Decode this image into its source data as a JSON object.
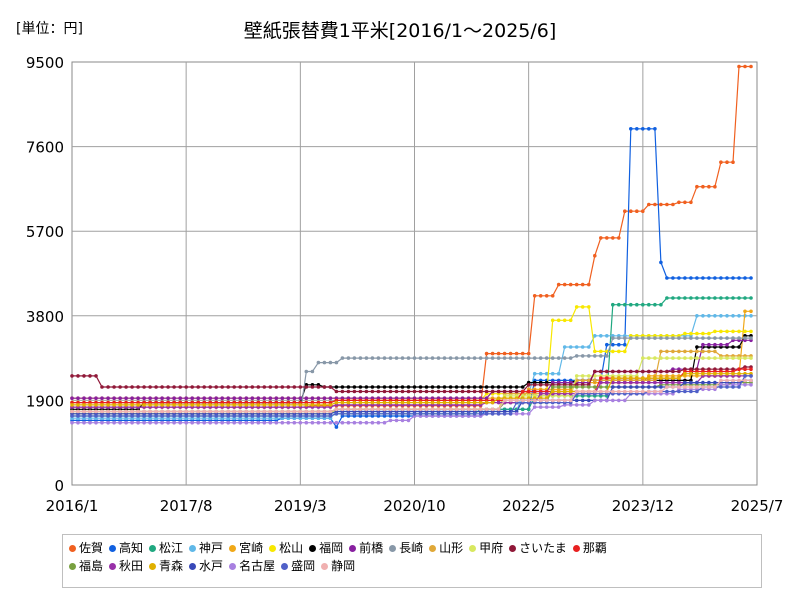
{
  "unit_label": "[単位：円]",
  "chart_data": {
    "type": "line",
    "title": "壁紙張替費1平米[2016/1～2025/6]",
    "xlabel": "",
    "ylabel": "",
    "ylim": [
      0,
      9500
    ],
    "xlim": [
      2016.0,
      2025.5
    ],
    "yticks": [
      0,
      1900,
      3800,
      5700,
      7600,
      9500
    ],
    "ytick_labels": [
      "0",
      "1900",
      "3800",
      "5700",
      "7600",
      "9500"
    ],
    "xticks": [
      2016.0,
      2017.583,
      2019.167,
      2020.75,
      2022.333,
      2023.917,
      2025.5
    ],
    "xtick_labels": [
      "2016/1",
      "2017/8",
      "2019/3",
      "2020/10",
      "2022/5",
      "2023/12",
      "2025/7"
    ],
    "grid": true,
    "series": [
      {
        "name": "佐賀",
        "color": "#f06020",
        "steps": [
          [
            2016.0,
            1750
          ],
          [
            2019.3,
            1780
          ],
          [
            2021.7,
            2950
          ],
          [
            2022.35,
            4250
          ],
          [
            2022.75,
            4500
          ],
          [
            2023.2,
            5150
          ],
          [
            2023.3,
            5550
          ],
          [
            2023.6,
            6150
          ],
          [
            2023.95,
            6300
          ],
          [
            2024.4,
            6350
          ],
          [
            2024.6,
            6700
          ],
          [
            2025.0,
            7250
          ],
          [
            2025.2,
            9400
          ]
        ]
      },
      {
        "name": "高知",
        "color": "#1060e0",
        "steps": [
          [
            2016.0,
            1450
          ],
          [
            2018.9,
            1500
          ],
          [
            2019.4,
            1500
          ],
          [
            2019.6,
            1300
          ],
          [
            2019.7,
            1550
          ],
          [
            2021.7,
            1700
          ],
          [
            2022.4,
            2350
          ],
          [
            2023.4,
            3150
          ],
          [
            2023.7,
            8000
          ],
          [
            2024.1,
            5000
          ],
          [
            2024.2,
            4650
          ]
        ]
      },
      {
        "name": "松江",
        "color": "#20a880",
        "steps": [
          [
            2016.0,
            1550
          ],
          [
            2019.6,
            1600
          ],
          [
            2021.6,
            1700
          ],
          [
            2022.4,
            2000
          ],
          [
            2023.5,
            4050
          ],
          [
            2024.05,
            4050
          ],
          [
            2024.2,
            4200
          ]
        ]
      },
      {
        "name": "神戸",
        "color": "#60b8e8",
        "steps": [
          [
            2016.0,
            1500
          ],
          [
            2019.6,
            1650
          ],
          [
            2022.2,
            2050
          ],
          [
            2022.4,
            2500
          ],
          [
            2022.8,
            3100
          ],
          [
            2023.2,
            3350
          ],
          [
            2024.1,
            3350
          ],
          [
            2024.6,
            3800
          ]
        ]
      },
      {
        "name": "宮崎",
        "color": "#f0a818",
        "steps": [
          [
            2016.0,
            1950
          ],
          [
            2019.6,
            1950
          ],
          [
            2022.3,
            2150
          ],
          [
            2023.0,
            2300
          ],
          [
            2024.0,
            2450
          ],
          [
            2025.3,
            3900
          ]
        ]
      },
      {
        "name": "松山",
        "color": "#f8e800",
        "steps": [
          [
            2016.0,
            1850
          ],
          [
            2019.6,
            1900
          ],
          [
            2021.7,
            2050
          ],
          [
            2022.65,
            3700
          ],
          [
            2022.95,
            4000
          ],
          [
            2023.2,
            3000
          ],
          [
            2023.7,
            3350
          ],
          [
            2024.5,
            3400
          ],
          [
            2024.9,
            3450
          ]
        ]
      },
      {
        "name": "福岡",
        "color": "#000000",
        "steps": [
          [
            2016.0,
            1700
          ],
          [
            2017.0,
            1850
          ],
          [
            2019.2,
            2250
          ],
          [
            2019.5,
            2200
          ],
          [
            2021.4,
            2200
          ],
          [
            2022.3,
            2300
          ],
          [
            2023.0,
            2350
          ],
          [
            2024.5,
            2350
          ],
          [
            2024.6,
            3100
          ],
          [
            2025.3,
            3350
          ]
        ]
      },
      {
        "name": "前橋",
        "color": "#8820a0",
        "steps": [
          [
            2016.0,
            1950
          ],
          [
            2019.6,
            1950
          ],
          [
            2021.8,
            2100
          ],
          [
            2022.6,
            2300
          ],
          [
            2023.2,
            2550
          ],
          [
            2024.3,
            2600
          ],
          [
            2024.7,
            3150
          ],
          [
            2025.1,
            3250
          ]
        ]
      },
      {
        "name": "長崎",
        "color": "#8898a8",
        "steps": [
          [
            2016.0,
            1600
          ],
          [
            2019.2,
            2550
          ],
          [
            2019.4,
            2750
          ],
          [
            2019.7,
            2850
          ],
          [
            2022.3,
            2850
          ],
          [
            2023.0,
            2900
          ],
          [
            2023.5,
            3300
          ],
          [
            2024.5,
            3300
          ]
        ]
      },
      {
        "name": "山形",
        "color": "#e0a838",
        "steps": [
          [
            2016.0,
            1650
          ],
          [
            2019.6,
            1700
          ],
          [
            2022.0,
            2050
          ],
          [
            2023.0,
            2350
          ],
          [
            2024.1,
            3000
          ],
          [
            2024.6,
            3000
          ],
          [
            2025.0,
            2900
          ]
        ]
      },
      {
        "name": "甲府",
        "color": "#d8e860",
        "steps": [
          [
            2016.0,
            1600
          ],
          [
            2019.6,
            1700
          ],
          [
            2022.0,
            2000
          ],
          [
            2023.0,
            2450
          ],
          [
            2023.9,
            2850
          ],
          [
            2024.5,
            2850
          ]
        ]
      },
      {
        "name": "さいたま",
        "color": "#901838",
        "steps": [
          [
            2016.0,
            2450
          ],
          [
            2016.4,
            2200
          ],
          [
            2019.6,
            2100
          ],
          [
            2022.3,
            2250
          ],
          [
            2023.2,
            2550
          ],
          [
            2024.5,
            2600
          ],
          [
            2025.3,
            2650
          ]
        ]
      },
      {
        "name": "那覇",
        "color": "#e82020",
        "steps": [
          [
            2016.0,
            1850
          ],
          [
            2019.6,
            1900
          ],
          [
            2022.2,
            2100
          ],
          [
            2023.3,
            2400
          ],
          [
            2024.5,
            2550
          ],
          [
            2025.2,
            2600
          ]
        ]
      },
      {
        "name": "福島",
        "color": "#78a040",
        "steps": [
          [
            2016.0,
            1650
          ],
          [
            2019.6,
            1700
          ],
          [
            2022.0,
            1850
          ],
          [
            2022.6,
            2200
          ],
          [
            2024.1,
            2250
          ],
          [
            2025.1,
            2300
          ]
        ]
      },
      {
        "name": "秋田",
        "color": "#9830a8",
        "steps": [
          [
            2016.0,
            1750
          ],
          [
            2019.6,
            1800
          ],
          [
            2021.7,
            1850
          ],
          [
            2022.5,
            2050
          ],
          [
            2023.3,
            2300
          ],
          [
            2024.7,
            2450
          ]
        ]
      },
      {
        "name": "青森",
        "color": "#e0b000",
        "steps": [
          [
            2016.0,
            1800
          ],
          [
            2019.6,
            1850
          ],
          [
            2021.9,
            1950
          ],
          [
            2022.6,
            2100
          ],
          [
            2023.5,
            2400
          ],
          [
            2024.5,
            2500
          ]
        ]
      },
      {
        "name": "水戸",
        "color": "#3848b8",
        "steps": [
          [
            2016.0,
            1600
          ],
          [
            2019.6,
            1650
          ],
          [
            2022.2,
            1900
          ],
          [
            2023.5,
            2200
          ],
          [
            2024.5,
            2300
          ],
          [
            2025.3,
            2350
          ]
        ]
      },
      {
        "name": "名古屋",
        "color": "#a880e0",
        "steps": [
          [
            2016.0,
            1400
          ],
          [
            2019.6,
            1400
          ],
          [
            2020.4,
            1450
          ],
          [
            2020.7,
            1550
          ],
          [
            2021.7,
            1600
          ],
          [
            2022.4,
            1750
          ],
          [
            2022.8,
            1800
          ],
          [
            2023.2,
            1900
          ],
          [
            2023.7,
            2050
          ],
          [
            2024.4,
            2150
          ],
          [
            2025.0,
            2250
          ]
        ]
      },
      {
        "name": "盛岡",
        "color": "#5060c8",
        "steps": [
          [
            2016.0,
            1550
          ],
          [
            2019.6,
            1600
          ],
          [
            2022.1,
            1850
          ],
          [
            2023.0,
            2050
          ],
          [
            2024.0,
            2100
          ],
          [
            2024.7,
            2200
          ],
          [
            2025.3,
            2450
          ]
        ]
      },
      {
        "name": "静岡",
        "color": "#f0b0b0",
        "steps": [
          [
            2016.0,
            1650
          ],
          [
            2019.6,
            1700
          ],
          [
            2022.0,
            1900
          ],
          [
            2023.0,
            2100
          ],
          [
            2024.2,
            2200
          ],
          [
            2025.0,
            2350
          ]
        ]
      }
    ]
  }
}
